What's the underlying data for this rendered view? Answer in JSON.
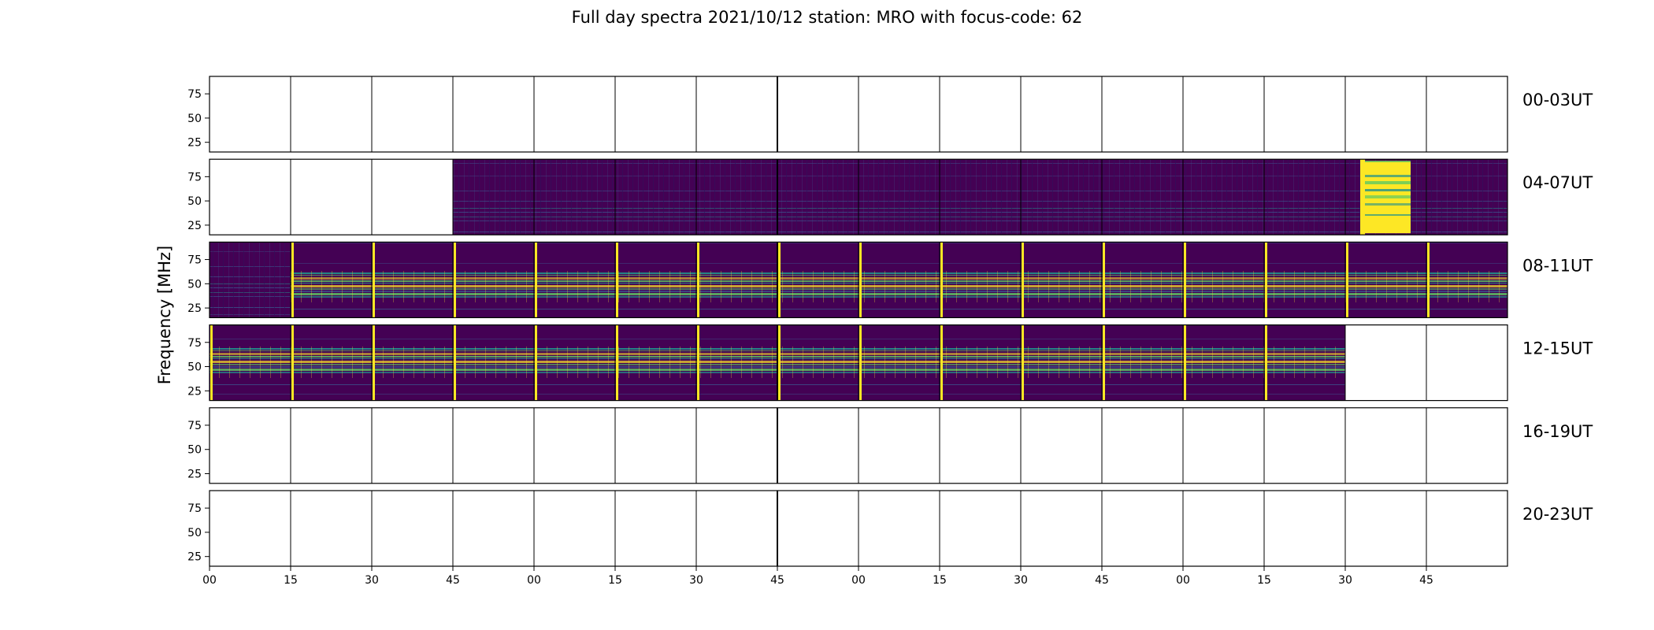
{
  "page": {
    "background": "#ffffff"
  },
  "chart_data": {
    "type": "heatmap",
    "title": "Full day spectra 2021/10/12 station: MRO with focus-code: 62",
    "ylabel": "Frequency [MHz]",
    "ylim": [
      15,
      93
    ],
    "y_ticks": [
      25,
      50,
      75
    ],
    "x_tick_labels": [
      "00",
      "15",
      "30",
      "45",
      "00",
      "15",
      "30",
      "45",
      "00",
      "15",
      "30",
      "45",
      "00",
      "15",
      "30",
      "45"
    ],
    "rows": [
      {
        "label": "00-03UT",
        "panels": [
          "empty",
          "empty",
          "empty",
          "empty",
          "empty",
          "empty",
          "empty",
          "empty",
          "empty",
          "empty",
          "empty",
          "empty",
          "empty",
          "empty",
          "empty",
          "empty"
        ]
      },
      {
        "label": "04-07UT",
        "panels": [
          "empty",
          "empty",
          "empty",
          "quiet",
          "quiet",
          "quiet",
          "quiet",
          "quiet",
          "quiet",
          "quiet",
          "quiet",
          "quiet",
          "quiet",
          "quiet",
          "burst",
          "quiet"
        ]
      },
      {
        "label": "08-11UT",
        "panels": [
          "quiet",
          "active",
          "active",
          "active",
          "active",
          "active",
          "active",
          "active",
          "active",
          "active",
          "active",
          "active",
          "active",
          "active",
          "active",
          "active"
        ]
      },
      {
        "label": "12-15UT",
        "panels": [
          "active",
          "active",
          "active",
          "active",
          "active",
          "active",
          "active",
          "active",
          "active",
          "active",
          "active",
          "active",
          "active",
          "active",
          "empty",
          "empty"
        ]
      },
      {
        "label": "16-19UT",
        "panels": [
          "empty",
          "empty",
          "empty",
          "empty",
          "empty",
          "empty",
          "empty",
          "empty",
          "empty",
          "empty",
          "empty",
          "empty",
          "empty",
          "empty",
          "empty",
          "empty"
        ]
      },
      {
        "label": "20-23UT",
        "panels": [
          "empty",
          "empty",
          "empty",
          "empty",
          "empty",
          "empty",
          "empty",
          "empty",
          "empty",
          "empty",
          "empty",
          "empty",
          "empty",
          "empty",
          "empty",
          "empty"
        ]
      }
    ],
    "colormap": [
      "#440154",
      "#3b528b",
      "#21918c",
      "#5ec962",
      "#fde725"
    ],
    "grid": false,
    "legend": "none"
  }
}
